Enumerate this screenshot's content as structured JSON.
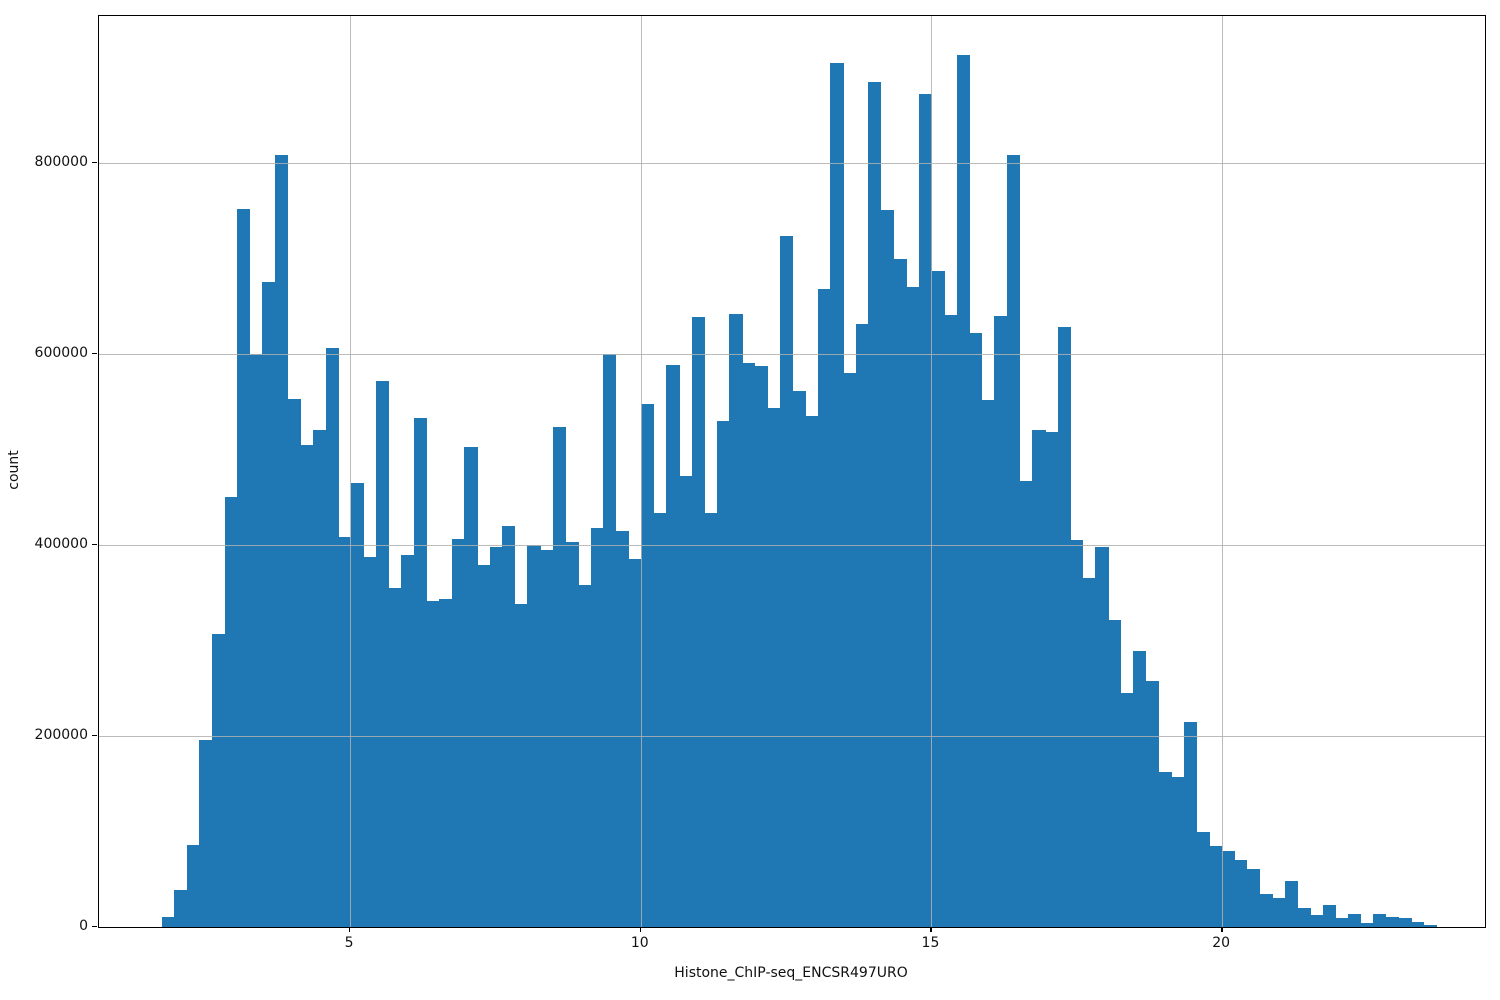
{
  "chart_data": {
    "type": "bar",
    "subtype": "histogram",
    "title": "",
    "xlabel": "Histone_ChIP-seq_ENCSR497URO",
    "ylabel": "count",
    "bar_color": "#1f77b4",
    "grid_color": "#b0b0b0",
    "grid": true,
    "grid_on_top": true,
    "xlim": [
      0.682,
      24.52
    ],
    "ylim": [
      0,
      954000
    ],
    "xticks": [
      5,
      10,
      15,
      20
    ],
    "yticks": [
      0,
      200000,
      400000,
      600000,
      800000
    ],
    "xtick_labels": [
      "5",
      "10",
      "15",
      "20"
    ],
    "ytick_labels": [
      "0",
      "200000",
      "400000",
      "600000",
      "800000"
    ],
    "bin_start": 1.757,
    "bin_width": 0.21706,
    "n_bins": 101,
    "counts": [
      10000,
      39000,
      86000,
      196000,
      307000,
      450000,
      752000,
      600000,
      675000,
      808000,
      553000,
      505000,
      520000,
      606000,
      408000,
      465000,
      387000,
      572000,
      355000,
      390000,
      533000,
      341000,
      343000,
      406000,
      503000,
      379000,
      398000,
      420000,
      338000,
      400000,
      395000,
      524000,
      403000,
      358000,
      418000,
      600000,
      415000,
      385000,
      548000,
      434000,
      589000,
      472000,
      639000,
      434000,
      530000,
      642000,
      591000,
      587000,
      544000,
      724000,
      561000,
      535000,
      668000,
      905000,
      580000,
      632000,
      885000,
      751000,
      700000,
      670000,
      872000,
      687000,
      641000,
      913000,
      622000,
      552000,
      640000,
      808000,
      467000,
      520000,
      518000,
      628000,
      405000,
      365000,
      398000,
      322000,
      245000,
      289000,
      258000,
      162000,
      157000,
      215000,
      100000,
      85000,
      80000,
      70000,
      61000,
      35000,
      30000,
      48000,
      20000,
      13000,
      23000,
      9000,
      14000,
      4000,
      14000,
      10000,
      9000,
      5000,
      2500
    ]
  }
}
